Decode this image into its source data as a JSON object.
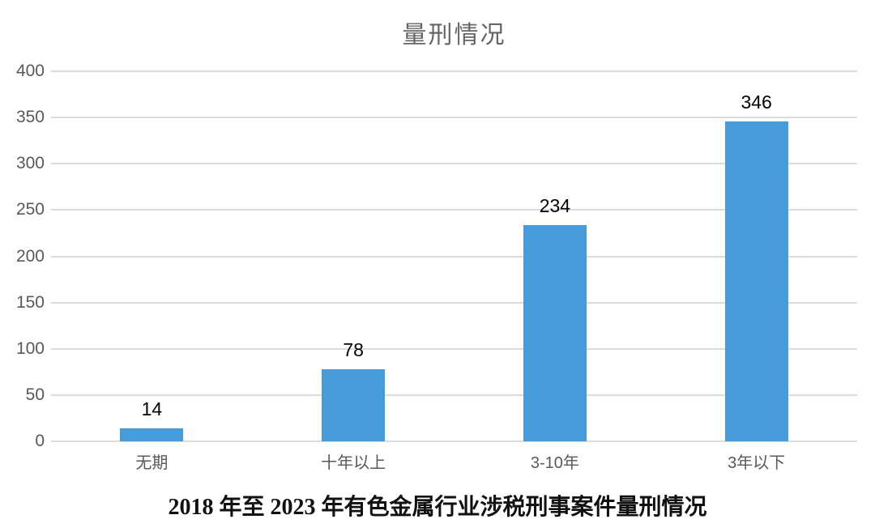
{
  "chart": {
    "caption": "2018 年至 2023 年有色金属行业涉税刑事案件量刑情况"
  },
  "chart_data": {
    "type": "bar",
    "title": "量刑情况",
    "categories": [
      "无期",
      "十年以上",
      "3-10年",
      "3年以下"
    ],
    "values": [
      14,
      78,
      234,
      346
    ],
    "xlabel": "",
    "ylabel": "",
    "ylim": [
      0,
      400
    ],
    "yticks": [
      0,
      50,
      100,
      150,
      200,
      250,
      300,
      350,
      400
    ],
    "grid": true,
    "legend": "none",
    "bar_color": "#459CD9",
    "gridline_color": "#DCDCDC",
    "axis_label_color": "#595959",
    "value_label_color": "#000000",
    "title_color": "#666666"
  }
}
